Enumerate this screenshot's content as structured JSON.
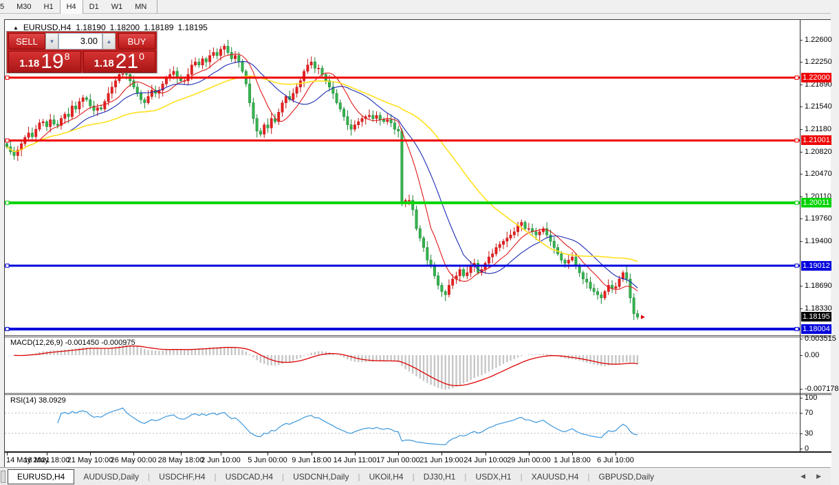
{
  "toolbar": {
    "timeframes": [
      "5",
      "M30",
      "H1",
      "H4",
      "D1",
      "W1",
      "MN"
    ],
    "active": "H4"
  },
  "chart": {
    "title": {
      "symbol": "EURUSD,H4",
      "open": "1.18190",
      "high": "1.18200",
      "low": "1.18189",
      "close": "1.18195"
    },
    "trade_panel": {
      "sell_label": "SELL",
      "buy_label": "BUY",
      "volume": "3.00",
      "sell_price": {
        "prefix": "1.18",
        "big": "19",
        "sup": "8"
      },
      "buy_price": {
        "prefix": "1.18",
        "big": "21",
        "sup": "0"
      }
    }
  },
  "price_axis": {
    "ticks": [
      "1.22600",
      "1.22250",
      "1.21890",
      "1.21540",
      "1.21180",
      "1.20820",
      "1.20470",
      "1.20110",
      "1.19760",
      "1.19400",
      "1.18690",
      "1.18330"
    ],
    "badges": [
      {
        "text": "1.22000",
        "color": "#ee0000"
      },
      {
        "text": "1.21001",
        "color": "#ee0000"
      },
      {
        "text": "1.20011",
        "color": "#00d300"
      },
      {
        "text": "1.19012",
        "color": "#0000dd"
      },
      {
        "text": "1.18195",
        "color": "#000000"
      },
      {
        "text": "1.18004",
        "color": "#0000dd"
      }
    ]
  },
  "indicator_macd": {
    "label": "MACD(12,26,9) -0.001450 -0.000975",
    "scale": [
      "0.003515",
      "0.00",
      "-0.007178"
    ]
  },
  "indicator_rsi": {
    "label": "RSI(14) 38.0929",
    "scale": [
      "100",
      "70",
      "30",
      "0"
    ]
  },
  "tabs": {
    "items": [
      "EURUSD,H4",
      "AUDUSD,Daily",
      "USDCHF,H4",
      "USDCAD,H4",
      "USDCNH,Daily",
      "UKOil,H4",
      "DJ30,H1",
      "USDX,H1",
      "XAUUSD,H4",
      "GBPUSD,Daily"
    ],
    "active": "EURUSD,H4"
  },
  "colors": {
    "candle_up": "#e62020",
    "candle_up_stroke": "#c01212",
    "candle_down": "#35b44e",
    "candle_down_stroke": "#148231",
    "ma_fast": "#e01818",
    "ma_mid": "#1c2bb4",
    "ma_slow": "#ffe01a",
    "macd_hist": "#c6c6c6",
    "macd_signal": "#dd0000",
    "rsi_line": "#3a96dc"
  },
  "chart_data": {
    "type": "candlestick",
    "symbol": "EURUSD",
    "timeframe": "H4",
    "title": "EURUSD,H4 1.18190 1.18200 1.18189 1.18195",
    "first_open": 1.2095,
    "closes": [
      1.209,
      1.2082,
      1.2076,
      1.2085,
      1.2095,
      1.2105,
      1.2112,
      1.2106,
      1.2118,
      1.2128,
      1.213,
      1.2122,
      1.2133,
      1.2126,
      1.2124,
      1.2135,
      1.2142,
      1.2138,
      1.2155,
      1.215,
      1.2162,
      1.2168,
      1.2165,
      1.2155,
      1.2148,
      1.2152,
      1.215,
      1.2162,
      1.2175,
      1.2185,
      1.2195,
      1.2205,
      1.222,
      1.2205,
      1.2195,
      1.2185,
      1.2175,
      1.2165,
      1.216,
      1.217,
      1.218,
      1.2175,
      1.218,
      1.219,
      1.22,
      1.2205,
      1.221,
      1.22,
      1.2195,
      1.2195,
      1.2205,
      1.222,
      1.2225,
      1.222,
      1.223,
      1.2225,
      1.2235,
      1.224,
      1.2235,
      1.2245,
      1.225,
      1.224,
      1.223,
      1.2235,
      1.2225,
      1.221,
      1.219,
      1.216,
      1.2135,
      1.2115,
      1.211,
      1.2125,
      1.212,
      1.2135,
      1.213,
      1.2145,
      1.216,
      1.217,
      1.2165,
      1.2175,
      1.2185,
      1.2195,
      1.221,
      1.222,
      1.2225,
      1.2215,
      1.2215,
      1.2205,
      1.2195,
      1.2185,
      1.2175,
      1.216,
      1.215,
      1.2138,
      1.2125,
      1.2118,
      1.2125,
      1.213,
      1.2135,
      1.2138,
      1.214,
      1.2135,
      1.214,
      1.2133,
      1.213,
      1.2133,
      1.2128,
      1.2118,
      1.2115,
      1.2,
      1.2005,
      1.2005,
      1.199,
      1.196,
      1.1945,
      1.193,
      1.191,
      1.19,
      1.1885,
      1.187,
      1.186,
      1.1855,
      1.187,
      1.188,
      1.1885,
      1.1895,
      1.1885,
      1.189,
      1.19,
      1.1905,
      1.189,
      1.1895,
      1.1905,
      1.1915,
      1.192,
      1.193,
      1.1935,
      1.194,
      1.1945,
      1.195,
      1.1955,
      1.1965,
      1.197,
      1.196,
      1.196,
      1.1955,
      1.195,
      1.1955,
      1.196,
      1.195,
      1.194,
      1.193,
      1.192,
      1.191,
      1.1905,
      1.191,
      1.1915,
      1.19,
      1.189,
      1.188,
      1.1875,
      1.1865,
      1.186,
      1.1855,
      1.185,
      1.186,
      1.187,
      1.1865,
      1.1868,
      1.188,
      1.189,
      1.188,
      1.185,
      1.1825,
      1.18195
    ],
    "current_price": 1.18195,
    "moving_averages": [
      {
        "period": 9,
        "color": "#e01818"
      },
      {
        "period": 18,
        "color": "#1c2bb4"
      },
      {
        "period": 42,
        "color": "#ffe01a"
      }
    ],
    "hlines": [
      {
        "price": 1.22,
        "color": "#ee0000",
        "width": 3
      },
      {
        "price": 1.21001,
        "color": "#ee0000",
        "width": 3
      },
      {
        "price": 1.20011,
        "color": "#00d300",
        "width": 4
      },
      {
        "price": 1.19012,
        "color": "#0000dd",
        "width": 3
      },
      {
        "price": 1.18004,
        "color": "#0000dd",
        "width": 4
      }
    ],
    "macd": {
      "fast": 12,
      "slow": 26,
      "signal": 9,
      "current": -0.00145,
      "current_signal": -0.000975,
      "scale_top": 0.003515,
      "scale_bottom": -0.007178
    },
    "rsi": {
      "period": 14,
      "current": 38.0929,
      "levels": [
        70,
        30
      ],
      "scale": [
        100,
        70,
        30,
        0
      ]
    },
    "time_labels": [
      {
        "text": "14 May 2021",
        "bar": 0
      },
      {
        "text": "18 May 18:00",
        "bar": 11
      },
      {
        "text": "21 May 10:00",
        "bar": 23
      },
      {
        "text": "26 May 00:00",
        "bar": 35
      },
      {
        "text": "28 May 18:00",
        "bar": 48
      },
      {
        "text": "2 Jun 10:00",
        "bar": 59
      },
      {
        "text": "5 Jun 00:00",
        "bar": 72
      },
      {
        "text": "9 Jun 18:00",
        "bar": 84
      },
      {
        "text": "14 Jun 11:00",
        "bar": 96
      },
      {
        "text": "17 Jun 00:00",
        "bar": 108
      },
      {
        "text": "21 Jun 19:00",
        "bar": 120
      },
      {
        "text": "24 Jun 10:00",
        "bar": 132
      },
      {
        "text": "29 Jun 00:00",
        "bar": 144
      },
      {
        "text": "1 Jul 18:00",
        "bar": 156
      },
      {
        "text": "6 Jul 10:00",
        "bar": 168
      }
    ],
    "ylim": [
      1.178,
      1.2285
    ]
  }
}
